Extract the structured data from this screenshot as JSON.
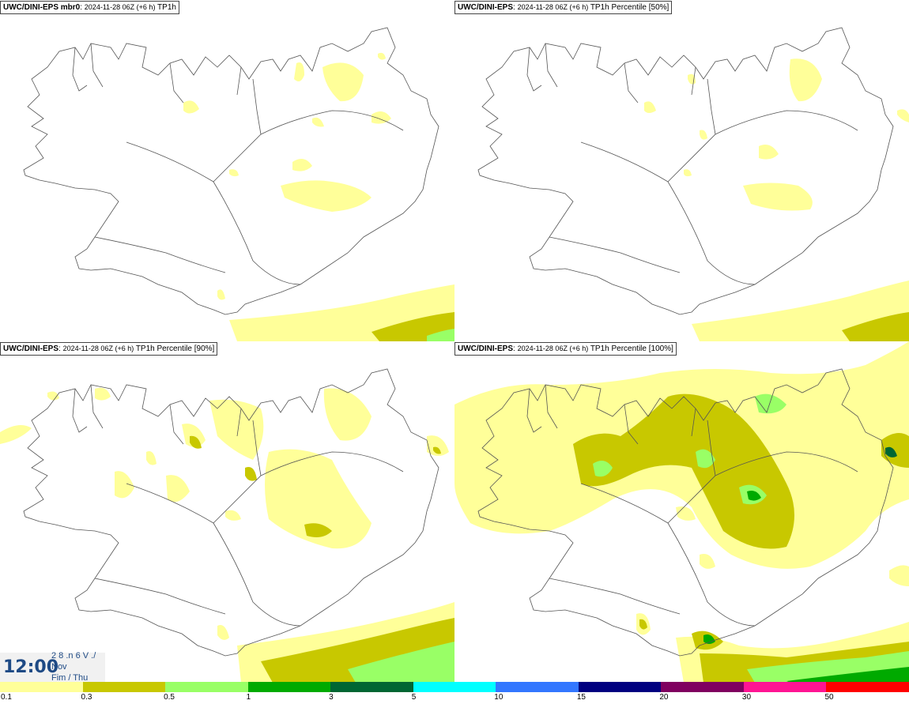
{
  "panels": [
    {
      "model": "UWC/DINI-EPS mbr0",
      "meta": "2024-11-28 06Z (+6 h)",
      "field": "TP1h"
    },
    {
      "model": "UWC/DINI-EPS",
      "meta": "2024-11-28 06Z (+6 h)",
      "field": "TP1h Percentile [50%]"
    },
    {
      "model": "UWC/DINI-EPS",
      "meta": "2024-11-28 06Z (+6 h)",
      "field": "TP1h Percentile [90%]"
    },
    {
      "model": "UWC/DINI-EPS",
      "meta": "2024-11-28 06Z (+6 h)",
      "field": "TP1h Percentile [100%]"
    }
  ],
  "clock": {
    "time": "12:00",
    "line1": "2 8 .n 6 V ./",
    "line2": "Nov",
    "line3": "Fim / Thu"
  },
  "legend": {
    "colors": [
      "#ffff99",
      "#c8c800",
      "#99ff66",
      "#00aa00",
      "#006633",
      "#00ffff",
      "#3377ff",
      "#000080",
      "#800060",
      "#ff1493",
      "#ff0000"
    ],
    "labels": [
      "0.1",
      "0.3",
      "0.5",
      "1",
      "3",
      "5",
      "10",
      "15",
      "20",
      "30",
      "50"
    ]
  }
}
